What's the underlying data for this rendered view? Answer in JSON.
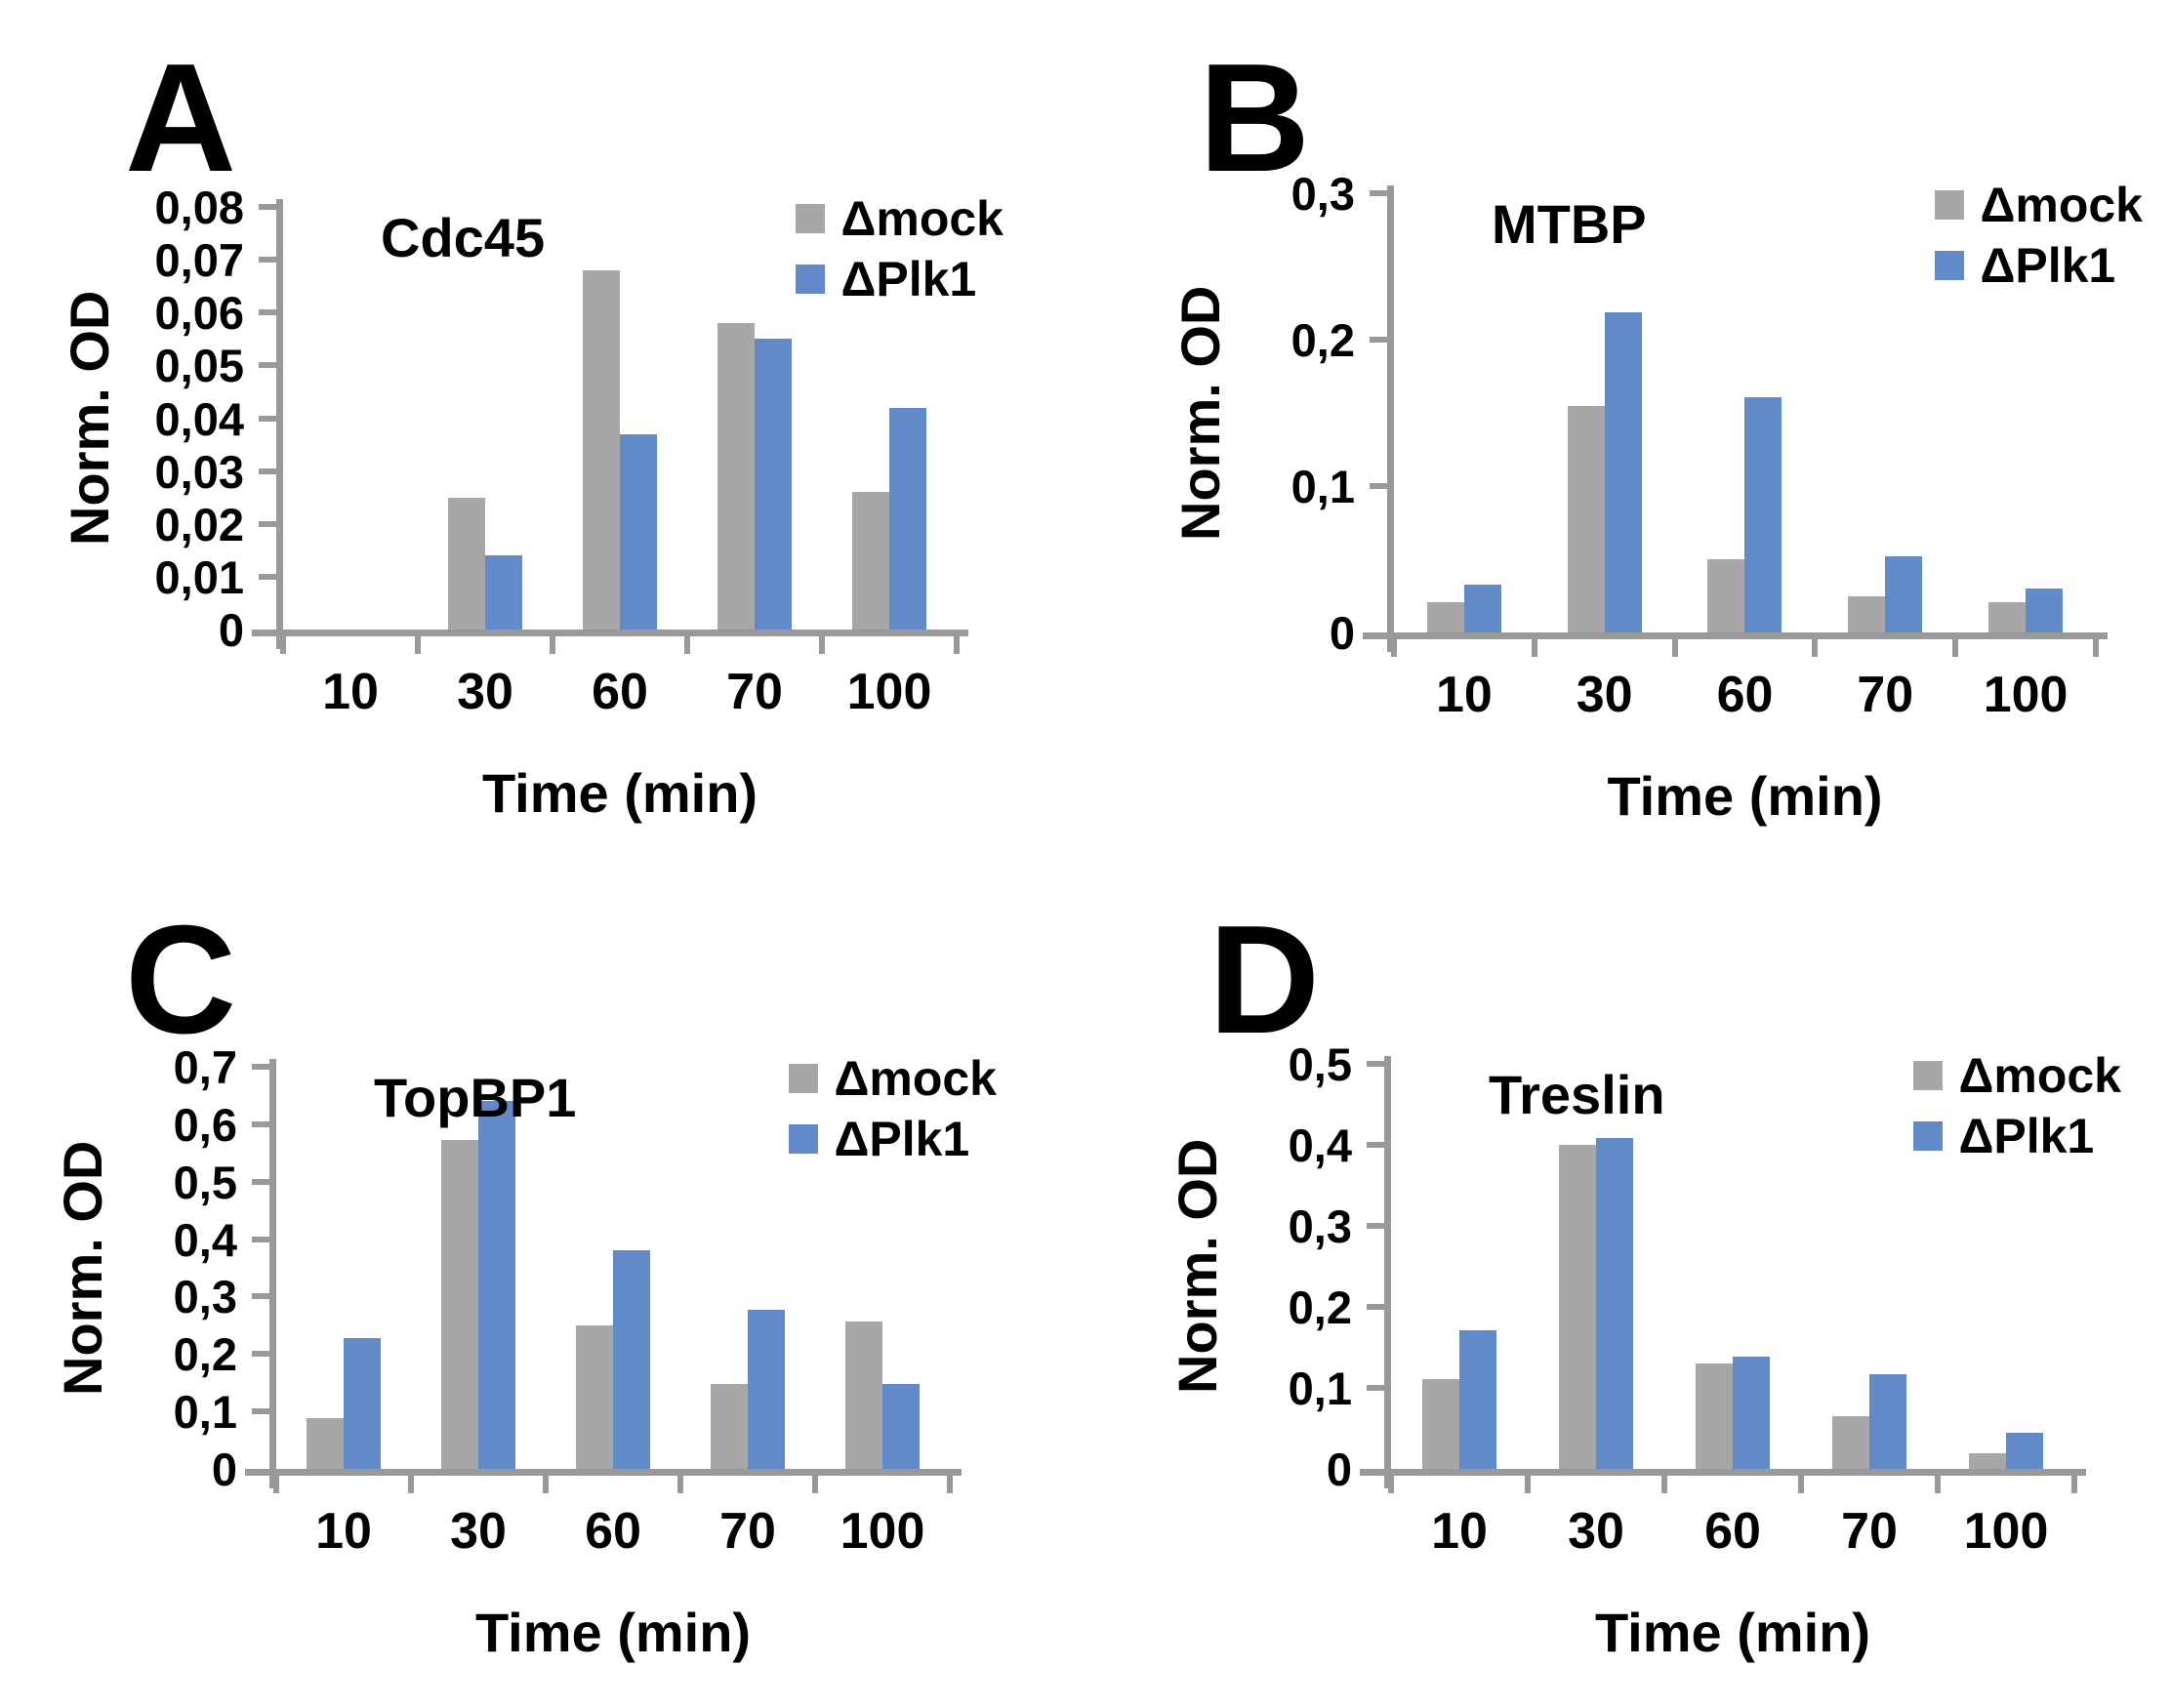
{
  "figure": {
    "colors": {
      "mock": "#a7a7a7",
      "plk1": "#6289c8",
      "axis": "#999999",
      "text": "#000000"
    },
    "legend": {
      "mock_label": "Δmock",
      "plk1_label": "ΔPlk1"
    }
  },
  "chart_data": [
    {
      "panel_letter": "A",
      "type": "bar",
      "title": "Cdc45",
      "xlabel": "Time (min)",
      "ylabel": "Norm. OD",
      "categories": [
        "10",
        "30",
        "60",
        "70",
        "100"
      ],
      "series": [
        {
          "name": "Δmock",
          "color": "#a7a7a7",
          "values": [
            0,
            0.025,
            0.068,
            0.058,
            0.026
          ]
        },
        {
          "name": "ΔPlk1",
          "color": "#6289c8",
          "values": [
            0,
            0.014,
            0.037,
            0.055,
            0.042
          ]
        }
      ],
      "ylim": [
        0,
        0.08
      ],
      "ytick_values": [
        0,
        0.01,
        0.02,
        0.03,
        0.04,
        0.05,
        0.06,
        0.07,
        0.08
      ],
      "ytick_labels": [
        "0",
        "0,01",
        "0,02",
        "0,03",
        "0,04",
        "0,05",
        "0,06",
        "0,07",
        "0,08"
      ],
      "legend_position": "top-right",
      "grid": false
    },
    {
      "panel_letter": "B",
      "type": "bar",
      "title": "MTBP",
      "xlabel": "Time (min)",
      "ylabel": "Norm. OD",
      "categories": [
        "10",
        "30",
        "60",
        "70",
        "100"
      ],
      "series": [
        {
          "name": "Δmock",
          "color": "#a7a7a7",
          "values": [
            0.021,
            0.155,
            0.05,
            0.025,
            0.021
          ]
        },
        {
          "name": "ΔPlk1",
          "color": "#6289c8",
          "values": [
            0.033,
            0.219,
            0.161,
            0.052,
            0.03
          ]
        }
      ],
      "ylim": [
        0,
        0.3
      ],
      "ytick_values": [
        0,
        0.1,
        0.2,
        0.3
      ],
      "ytick_labels": [
        "0",
        "0,1",
        "0,2",
        "0,3"
      ],
      "legend_position": "top-right",
      "grid": false
    },
    {
      "panel_letter": "C",
      "type": "bar",
      "title": "TopBP1",
      "xlabel": "Time (min)",
      "ylabel": "Norm. OD",
      "categories": [
        "10",
        "30",
        "60",
        "70",
        "100"
      ],
      "series": [
        {
          "name": "Δmock",
          "color": "#a7a7a7",
          "values": [
            0.088,
            0.572,
            0.249,
            0.148,
            0.257
          ]
        },
        {
          "name": "ΔPlk1",
          "color": "#6289c8",
          "values": [
            0.228,
            0.64,
            0.38,
            0.277,
            0.148
          ]
        }
      ],
      "ylim": [
        0,
        0.7
      ],
      "ytick_values": [
        0,
        0.1,
        0.2,
        0.3,
        0.4,
        0.5,
        0.6,
        0.7
      ],
      "ytick_labels": [
        "0",
        "0,1",
        "0,2",
        "0,3",
        "0,4",
        "0,5",
        "0,6",
        "0,7"
      ],
      "legend_position": "top-right",
      "grid": false
    },
    {
      "panel_letter": "D",
      "type": "bar",
      "title": "Treslin",
      "xlabel": "Time (min)",
      "ylabel": "Norm. OD",
      "categories": [
        "10",
        "30",
        "60",
        "70",
        "100"
      ],
      "series": [
        {
          "name": "Δmock",
          "color": "#a7a7a7",
          "values": [
            0.111,
            0.4,
            0.13,
            0.065,
            0.019
          ]
        },
        {
          "name": "ΔPlk1",
          "color": "#6289c8",
          "values": [
            0.171,
            0.408,
            0.139,
            0.117,
            0.045
          ]
        }
      ],
      "ylim": [
        0,
        0.5
      ],
      "ytick_values": [
        0,
        0.1,
        0.2,
        0.3,
        0.4,
        0.5
      ],
      "ytick_labels": [
        "0",
        "0,1",
        "0,2",
        "0,3",
        "0,4",
        "0,5"
      ],
      "legend_position": "top-right",
      "grid": false
    }
  ]
}
